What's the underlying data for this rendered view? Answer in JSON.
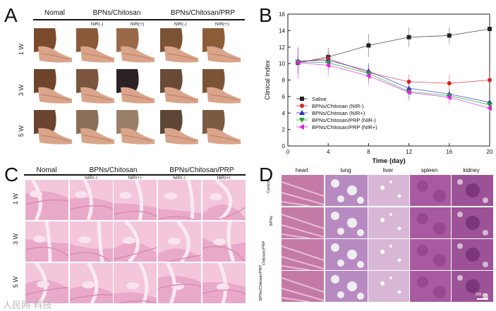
{
  "panels": {
    "A": {
      "letter": "A",
      "groups": [
        "Nomal",
        "BPNs/Chitosan",
        "BPNs/Chitosan/PRP"
      ],
      "subs": [
        "NIR(-)",
        "NIR(+)",
        "NIR(-)",
        "NIR(+)"
      ],
      "rows": [
        "1 W",
        "3 W",
        "5 W"
      ]
    },
    "B": {
      "letter": "B"
    },
    "C": {
      "letter": "C",
      "groups": [
        "Nomal",
        "BPNs/Chitosan",
        "BPNs/Chitosan/PRP"
      ],
      "subs": [
        "NIR(-)",
        "NIR(+)",
        "NIR(-)",
        "NIR(+)"
      ],
      "rows": [
        "1 W",
        "3 W",
        "5 W"
      ]
    },
    "D": {
      "letter": "D",
      "organs": [
        "heart",
        "lung",
        "liver",
        "spleen",
        "kidney"
      ],
      "rows": [
        "Control",
        "BPNs",
        "Chitosan/PRP",
        "BPNs/Chitosan/PRP"
      ],
      "scale": "200 um"
    }
  },
  "watermark": "人民网·科技",
  "chart_data": {
    "type": "line",
    "xlabel": "Time (day)",
    "ylabel": "Clinical Index",
    "x": [
      1,
      4,
      8,
      12,
      16,
      20
    ],
    "xlim": [
      0,
      20
    ],
    "ylim": [
      0,
      16
    ],
    "xticks": [
      0,
      4,
      8,
      12,
      16,
      20
    ],
    "yticks": [
      0,
      2,
      4,
      6,
      8,
      10,
      12,
      14,
      16
    ],
    "legend_position": "bottom-left",
    "series": [
      {
        "name": "Saline",
        "marker": "square",
        "color": "#222222",
        "values": [
          10.1,
          10.8,
          12.2,
          13.2,
          13.4,
          14.2
        ],
        "err": [
          0.8,
          1.1,
          1.4,
          1.2,
          1.0,
          0.6
        ]
      },
      {
        "name": "BPNs/Chitosan (NIR-)",
        "marker": "circle",
        "color": "#e02020",
        "values": [
          10.2,
          10.6,
          8.9,
          7.8,
          7.6,
          8.0
        ],
        "err": [
          1.2,
          1.0,
          1.0,
          0.9,
          1.1,
          1.1
        ]
      },
      {
        "name": "BPNs/Chitosan (NIR+)",
        "marker": "triangle-up",
        "color": "#2030c0",
        "values": [
          10.3,
          10.4,
          9.1,
          7.0,
          6.3,
          5.3
        ],
        "err": [
          1.6,
          0.9,
          1.0,
          0.8,
          0.7,
          0.7
        ]
      },
      {
        "name": "BPNs/Chitosan/PRP (NIR-)",
        "marker": "triangle-down",
        "color": "#20a030",
        "values": [
          10.2,
          10.1,
          8.8,
          6.6,
          6.1,
          5.0
        ],
        "err": [
          1.5,
          1.0,
          1.0,
          0.9,
          0.8,
          0.7
        ]
      },
      {
        "name": "BPNs/Chitosan/PRP (NIR+)",
        "marker": "triangle-left",
        "color": "#e020e0",
        "values": [
          10.1,
          9.8,
          8.5,
          6.5,
          5.9,
          4.6
        ],
        "err": [
          2.0,
          1.4,
          1.2,
          1.0,
          0.9,
          0.6
        ]
      }
    ]
  }
}
